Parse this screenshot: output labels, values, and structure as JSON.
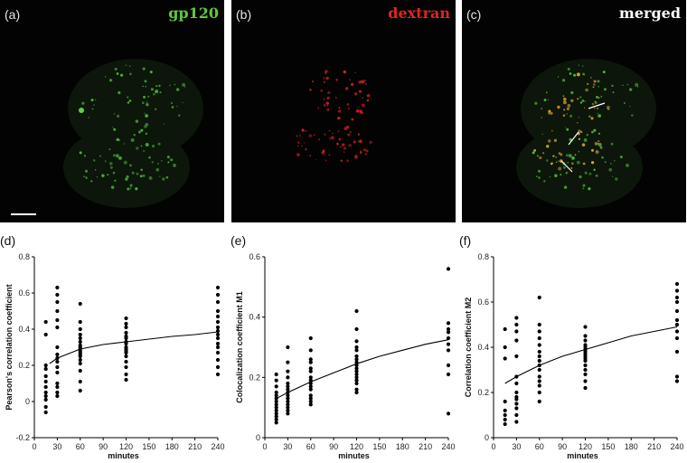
{
  "images": [
    {
      "letter": "(a)",
      "channel": "gp120",
      "channel_color": "#5fc83a"
    },
    {
      "letter": "(b)",
      "channel": "dextran",
      "channel_color": "#e02424"
    },
    {
      "letter": "(c)",
      "channel": "merged",
      "channel_color": "#ffffff"
    }
  ],
  "plots": [
    {
      "letter": "(d)"
    },
    {
      "letter": "(e)"
    },
    {
      "letter": "(f)"
    }
  ],
  "chart_data": [
    {
      "type": "scatter",
      "xlabel": "minutes",
      "ylabel": "Pearson's correlation coefficient",
      "xlim": [
        0,
        240
      ],
      "ylim": [
        -0.2,
        0.8
      ],
      "xticks": [
        0,
        30,
        60,
        90,
        120,
        150,
        180,
        210,
        240
      ],
      "yticks": [
        -0.2,
        0,
        0.2,
        0.4,
        0.6,
        0.8
      ],
      "yticklabels": [
        "-0.2",
        "0",
        "0.2",
        "0.4",
        "0.6",
        "0.8"
      ],
      "groups": [
        {
          "x": 15,
          "values": [
            0.44,
            0.37,
            0.2,
            0.18,
            0.14,
            0.11,
            0.08,
            0.05,
            0.03,
            0.01,
            -0.03,
            -0.06
          ]
        },
        {
          "x": 30,
          "values": [
            0.63,
            0.59,
            0.55,
            0.5,
            0.45,
            0.41,
            0.3,
            0.26,
            0.24,
            0.22,
            0.19,
            0.16,
            0.1,
            0.08,
            0.05,
            0.03
          ]
        },
        {
          "x": 60,
          "values": [
            0.54,
            0.44,
            0.4,
            0.37,
            0.35,
            0.33,
            0.31,
            0.3,
            0.29,
            0.28,
            0.27,
            0.26,
            0.25,
            0.23,
            0.21,
            0.17,
            0.11,
            0.06
          ]
        },
        {
          "x": 120,
          "values": [
            0.46,
            0.43,
            0.41,
            0.38,
            0.36,
            0.35,
            0.33,
            0.32,
            0.3,
            0.29,
            0.28,
            0.27,
            0.25,
            0.22,
            0.19,
            0.15,
            0.12
          ]
        },
        {
          "x": 240,
          "values": [
            0.63,
            0.59,
            0.55,
            0.5,
            0.47,
            0.44,
            0.41,
            0.39,
            0.37,
            0.35,
            0.32,
            0.3,
            0.27,
            0.23,
            0.19,
            0.15
          ]
        }
      ],
      "fit": {
        "x": [
          20,
          30,
          45,
          60,
          90,
          120,
          150,
          180,
          210,
          240
        ],
        "y": [
          0.21,
          0.24,
          0.265,
          0.29,
          0.315,
          0.33,
          0.345,
          0.36,
          0.37,
          0.385
        ]
      }
    },
    {
      "type": "scatter",
      "xlabel": "minutes",
      "ylabel": "Colocalization coefficient M1",
      "xlim": [
        0,
        240
      ],
      "ylim": [
        0,
        0.6
      ],
      "xticks": [
        0,
        30,
        60,
        90,
        120,
        150,
        180,
        210,
        240
      ],
      "yticks": [
        0,
        0.2,
        0.4,
        0.6
      ],
      "yticklabels": [
        "0",
        "0.2",
        "0.4",
        "0.6"
      ],
      "groups": [
        {
          "x": 15,
          "values": [
            0.21,
            0.19,
            0.17,
            0.15,
            0.14,
            0.13,
            0.12,
            0.11,
            0.1,
            0.09,
            0.08,
            0.07,
            0.06,
            0.05
          ]
        },
        {
          "x": 30,
          "values": [
            0.3,
            0.25,
            0.22,
            0.2,
            0.18,
            0.17,
            0.16,
            0.15,
            0.14,
            0.13,
            0.12,
            0.11,
            0.1,
            0.09,
            0.08
          ]
        },
        {
          "x": 60,
          "values": [
            0.33,
            0.29,
            0.26,
            0.25,
            0.23,
            0.22,
            0.2,
            0.19,
            0.18,
            0.17,
            0.16,
            0.14,
            0.13,
            0.12,
            0.11
          ]
        },
        {
          "x": 120,
          "values": [
            0.42,
            0.36,
            0.32,
            0.3,
            0.29,
            0.27,
            0.26,
            0.25,
            0.24,
            0.23,
            0.22,
            0.21,
            0.2,
            0.19,
            0.18,
            0.16,
            0.15
          ]
        },
        {
          "x": 240,
          "values": [
            0.56,
            0.38,
            0.36,
            0.35,
            0.33,
            0.31,
            0.29,
            0.24,
            0.21,
            0.08
          ]
        }
      ],
      "fit": {
        "x": [
          15,
          30,
          60,
          90,
          120,
          150,
          180,
          210,
          240
        ],
        "y": [
          0.13,
          0.15,
          0.185,
          0.215,
          0.245,
          0.27,
          0.29,
          0.31,
          0.325
        ]
      }
    },
    {
      "type": "scatter",
      "xlabel": "minutes",
      "ylabel": "Correlation coefficient M2",
      "xlim": [
        0,
        240
      ],
      "ylim": [
        0,
        0.8
      ],
      "xticks": [
        0,
        30,
        60,
        90,
        120,
        150,
        180,
        210,
        240
      ],
      "yticks": [
        0,
        0.2,
        0.4,
        0.6,
        0.8
      ],
      "yticklabels": [
        "0",
        "0.2",
        "0.4",
        "0.6",
        "0.8"
      ],
      "groups": [
        {
          "x": 15,
          "values": [
            0.48,
            0.4,
            0.35,
            0.16,
            0.12,
            0.1,
            0.08,
            0.06
          ]
        },
        {
          "x": 30,
          "values": [
            0.53,
            0.5,
            0.47,
            0.43,
            0.36,
            0.27,
            0.24,
            0.2,
            0.18,
            0.17,
            0.15,
            0.13,
            0.1,
            0.07
          ]
        },
        {
          "x": 60,
          "values": [
            0.62,
            0.5,
            0.47,
            0.44,
            0.41,
            0.38,
            0.36,
            0.34,
            0.32,
            0.3,
            0.27,
            0.25,
            0.23,
            0.2,
            0.16
          ]
        },
        {
          "x": 120,
          "values": [
            0.49,
            0.45,
            0.43,
            0.41,
            0.4,
            0.39,
            0.38,
            0.37,
            0.36,
            0.35,
            0.34,
            0.32,
            0.3,
            0.28,
            0.25,
            0.22
          ]
        },
        {
          "x": 240,
          "values": [
            0.68,
            0.65,
            0.62,
            0.6,
            0.56,
            0.52,
            0.5,
            0.47,
            0.44,
            0.38,
            0.27,
            0.25
          ]
        }
      ],
      "fit": {
        "x": [
          15,
          30,
          60,
          90,
          120,
          150,
          180,
          210,
          240
        ],
        "y": [
          0.24,
          0.27,
          0.32,
          0.36,
          0.39,
          0.42,
          0.45,
          0.47,
          0.49
        ]
      }
    }
  ]
}
